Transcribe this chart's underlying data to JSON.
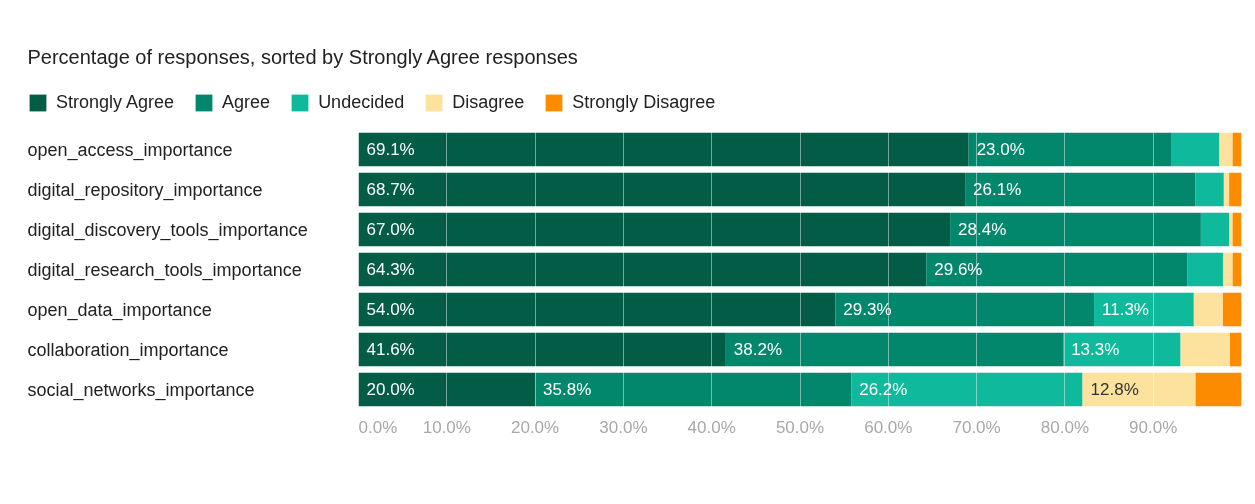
{
  "chart_data": {
    "type": "bar",
    "orientation": "horizontal",
    "stacked": true,
    "title": "Percentage of responses, sorted by Strongly Agree responses",
    "categories": [
      "open_access_importance",
      "digital_repository_importance",
      "digital_discovery_tools_importance",
      "digital_research_tools_importance",
      "open_data_importance",
      "collaboration_importance",
      "social_networks_importance"
    ],
    "series": [
      {
        "name": "Strongly Agree",
        "color": "#035c46",
        "values": [
          69.1,
          68.7,
          67.0,
          64.3,
          54.0,
          41.6,
          20.0
        ],
        "value_labels": [
          "69.1%",
          "68.7%",
          "67.0%",
          "64.3%",
          "54.0%",
          "41.6%",
          "20.0%"
        ]
      },
      {
        "name": "Agree",
        "color": "#03876c",
        "values": [
          23.0,
          26.1,
          28.4,
          29.6,
          29.3,
          38.2,
          35.8
        ],
        "value_labels": [
          "23.0%",
          "26.1%",
          "28.4%",
          "29.6%",
          "29.3%",
          "38.2%",
          "35.8%"
        ]
      },
      {
        "name": "Undecided",
        "color": "#0fb99b",
        "values": [
          5.4,
          3.2,
          3.2,
          4.0,
          11.3,
          13.3,
          26.2
        ],
        "value_labels": [
          null,
          null,
          null,
          null,
          "11.3%",
          "13.3%",
          "26.2%"
        ]
      },
      {
        "name": "Disagree",
        "color": "#fde29d",
        "values": [
          1.5,
          0.6,
          0.4,
          1.1,
          3.3,
          5.6,
          12.8
        ],
        "value_labels": [
          null,
          null,
          null,
          null,
          null,
          null,
          "12.8%"
        ]
      },
      {
        "name": "Strongly Disagree",
        "color": "#fb8c00",
        "values": [
          1.0,
          1.4,
          1.0,
          1.0,
          2.1,
          1.3,
          5.2
        ]
      }
    ],
    "xlim": [
      0,
      100
    ],
    "xticks": [
      {
        "value": 0,
        "label": "0.0%"
      },
      {
        "value": 10,
        "label": "10.0%"
      },
      {
        "value": 20,
        "label": "20.0%"
      },
      {
        "value": 30,
        "label": "30.0%"
      },
      {
        "value": 40,
        "label": "40.0%"
      },
      {
        "value": 50,
        "label": "50.0%"
      },
      {
        "value": 60,
        "label": "60.0%"
      },
      {
        "value": 70,
        "label": "70.0%"
      },
      {
        "value": 80,
        "label": "80.0%"
      },
      {
        "value": 90,
        "label": "90.0%"
      }
    ],
    "grid": "x",
    "legend": "top left"
  }
}
